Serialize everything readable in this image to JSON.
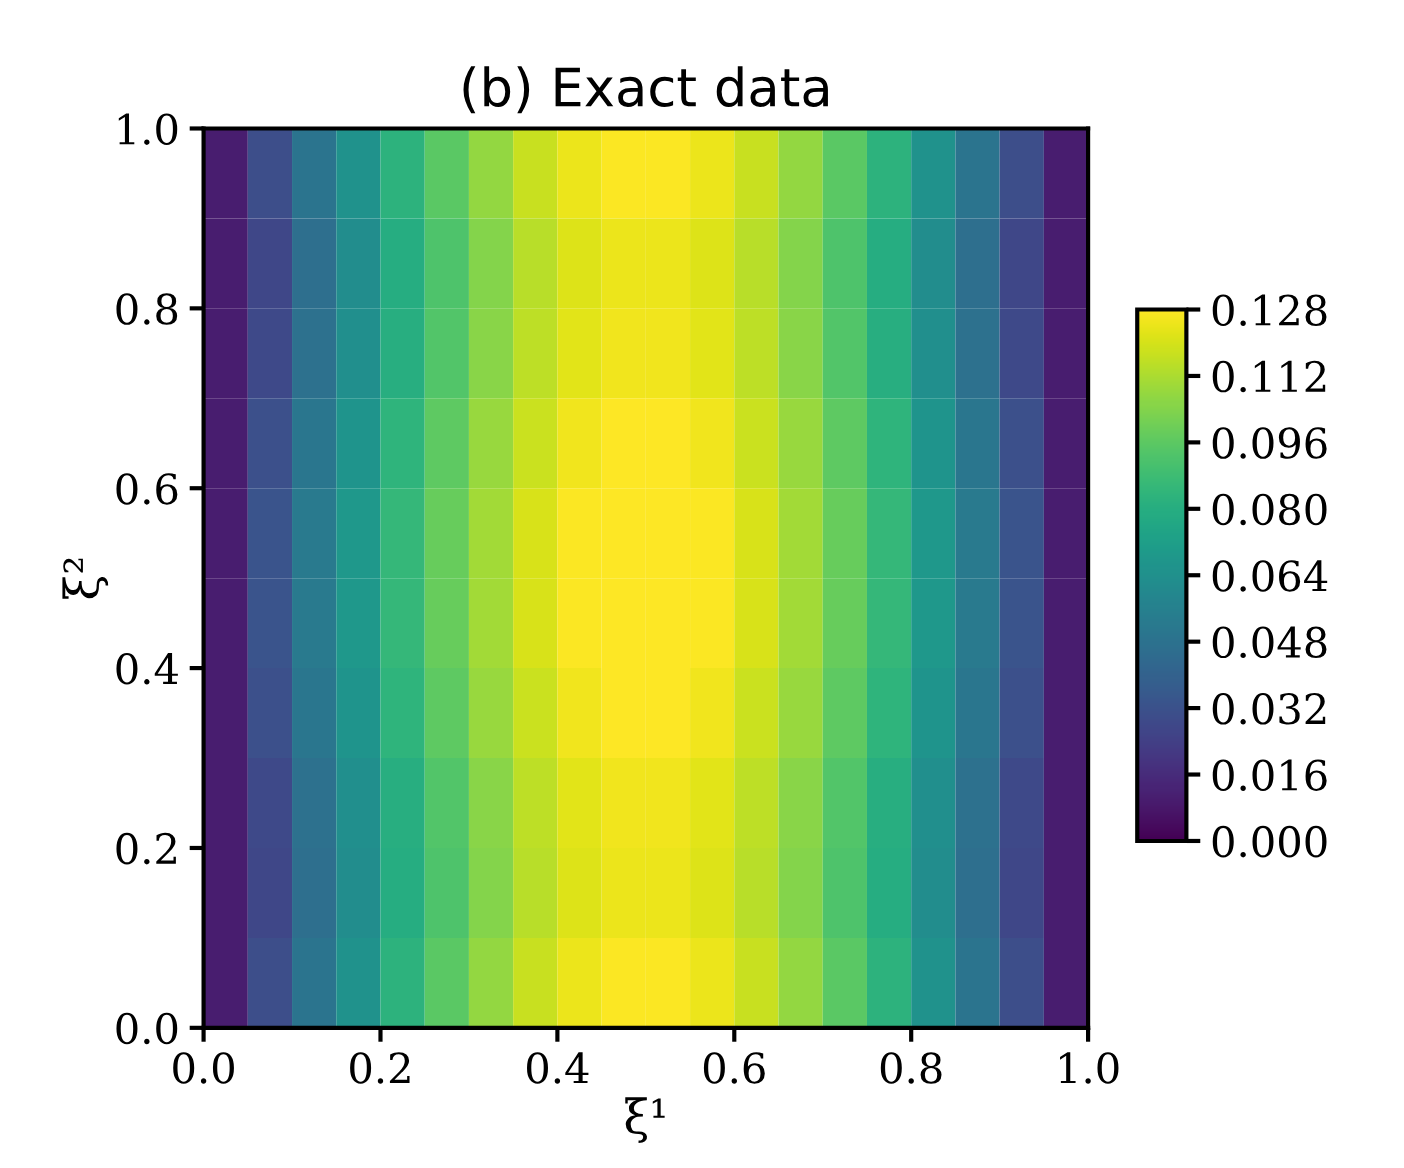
{
  "chart_data": {
    "type": "heatmap",
    "title": "(b) Exact data",
    "xlabel": "ξ¹",
    "ylabel": "ξ²",
    "x": [
      0.025,
      0.075,
      0.125,
      0.175,
      0.225,
      0.275,
      0.325,
      0.375,
      0.425,
      0.475,
      0.525,
      0.575,
      0.625,
      0.675,
      0.725,
      0.775,
      0.825,
      0.875,
      0.925,
      0.975
    ],
    "y": [
      0.95,
      0.85,
      0.75,
      0.65,
      0.55,
      0.45,
      0.35,
      0.25,
      0.15,
      0.05
    ],
    "xlim": [
      0,
      1
    ],
    "ylim": [
      0,
      1
    ],
    "xticks": [
      {
        "value": 0,
        "label": "0.0"
      },
      0.2,
      0.4,
      0.6,
      0.8,
      {
        "value": 1,
        "label": "1.0"
      }
    ],
    "yticks": [
      {
        "value": 0,
        "label": "0.0"
      },
      0.2,
      0.4,
      0.6,
      0.8,
      {
        "value": 1,
        "label": "1.0"
      }
    ],
    "clim": [
      0,
      0.128
    ],
    "cticks": [
      {
        "value": 0,
        "label": "0.000"
      },
      0.016,
      0.032,
      0.048,
      0.064,
      {
        "value": 0.08,
        "label": "0.080"
      },
      0.096,
      0.112,
      0.128
    ],
    "cells": [
      [
        0.01,
        0.03,
        0.049,
        0.065,
        0.082,
        0.095,
        0.107,
        0.117,
        0.124,
        0.127,
        0.127,
        0.124,
        0.117,
        0.107,
        0.095,
        0.082,
        0.065,
        0.049,
        0.03,
        0.01
      ],
      [
        0.01,
        0.027,
        0.046,
        0.062,
        0.079,
        0.092,
        0.104,
        0.114,
        0.121,
        0.124,
        0.124,
        0.121,
        0.114,
        0.104,
        0.092,
        0.079,
        0.062,
        0.046,
        0.027,
        0.01
      ],
      [
        0.01,
        0.028,
        0.047,
        0.063,
        0.08,
        0.093,
        0.105,
        0.115,
        0.122,
        0.125,
        0.125,
        0.122,
        0.115,
        0.105,
        0.093,
        0.08,
        0.063,
        0.047,
        0.028,
        0.01
      ],
      [
        0.01,
        0.031,
        0.05,
        0.066,
        0.083,
        0.096,
        0.108,
        0.118,
        0.125,
        0.128,
        0.128,
        0.125,
        0.118,
        0.108,
        0.096,
        0.083,
        0.066,
        0.05,
        0.031,
        0.01
      ],
      [
        0.01,
        0.033,
        0.052,
        0.068,
        0.085,
        0.098,
        0.11,
        0.12,
        0.127,
        0.128,
        0.128,
        0.127,
        0.12,
        0.11,
        0.098,
        0.085,
        0.068,
        0.052,
        0.033,
        0.01
      ],
      [
        0.01,
        0.033,
        0.052,
        0.068,
        0.085,
        0.098,
        0.11,
        0.12,
        0.127,
        0.128,
        0.128,
        0.127,
        0.12,
        0.11,
        0.098,
        0.085,
        0.068,
        0.052,
        0.033,
        0.01
      ],
      [
        0.01,
        0.031,
        0.05,
        0.066,
        0.083,
        0.096,
        0.108,
        0.118,
        0.125,
        0.128,
        0.128,
        0.125,
        0.118,
        0.108,
        0.096,
        0.083,
        0.066,
        0.05,
        0.031,
        0.01
      ],
      [
        0.01,
        0.028,
        0.047,
        0.063,
        0.08,
        0.093,
        0.105,
        0.115,
        0.122,
        0.125,
        0.125,
        0.122,
        0.115,
        0.105,
        0.093,
        0.08,
        0.063,
        0.047,
        0.028,
        0.01
      ],
      [
        0.01,
        0.027,
        0.046,
        0.062,
        0.079,
        0.092,
        0.104,
        0.114,
        0.121,
        0.124,
        0.124,
        0.121,
        0.114,
        0.104,
        0.092,
        0.079,
        0.062,
        0.046,
        0.027,
        0.01
      ],
      [
        0.01,
        0.03,
        0.049,
        0.065,
        0.082,
        0.095,
        0.107,
        0.117,
        0.124,
        0.127,
        0.127,
        0.124,
        0.117,
        0.107,
        0.095,
        0.082,
        0.065,
        0.049,
        0.03,
        0.01
      ]
    ]
  }
}
